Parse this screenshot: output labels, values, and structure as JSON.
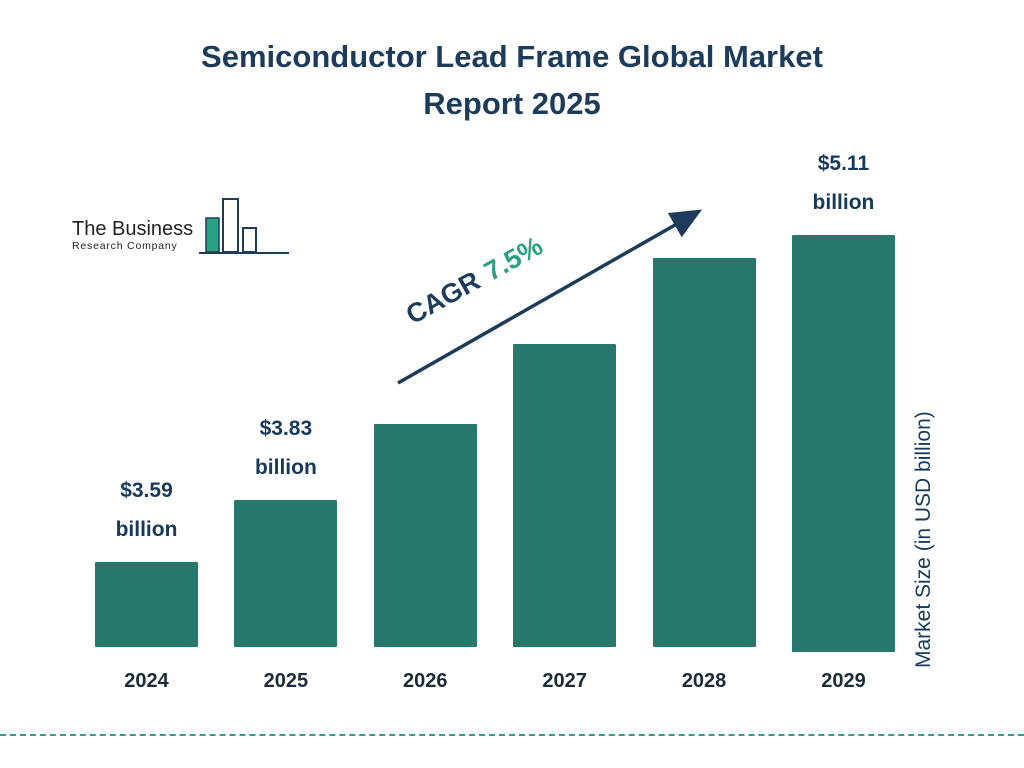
{
  "title": {
    "line1": "Semiconductor Lead Frame Global Market",
    "line2": "Report 2025"
  },
  "logo": {
    "line1": "The Business",
    "line2": "Research Company"
  },
  "annotation": {
    "cagr_label": "CAGR",
    "cagr_value": "7.5%"
  },
  "y_axis_label": "Market Size (in USD billion)",
  "colors": {
    "navy": "#1d3c5c",
    "bar_teal": "#26786d",
    "accent_teal": "#2aa184"
  },
  "chart_data": {
    "type": "bar",
    "title": "Semiconductor Lead Frame Global Market Report 2025",
    "categories": [
      "2024",
      "2025",
      "2026",
      "2027",
      "2028",
      "2029"
    ],
    "values": [
      3.59,
      3.83,
      4.12,
      4.43,
      4.76,
      5.11
    ],
    "value_labels": [
      {
        "amount": "$3.59",
        "unit": "billion"
      },
      {
        "amount": "$3.83",
        "unit": "billion"
      },
      null,
      null,
      null,
      {
        "amount": "$5.11",
        "unit": "billion"
      }
    ],
    "cagr": "7.5%",
    "ylabel": "Market Size (in USD billion)",
    "xlabel": "",
    "ylim": [
      3.27,
      5.2
    ],
    "grid": false,
    "legend": "none",
    "bar_color": "#26786d",
    "note": "values for 2026-2028 estimated from 7.5% CAGR trend; only 2024, 2025 and 2029 carry data labels"
  }
}
